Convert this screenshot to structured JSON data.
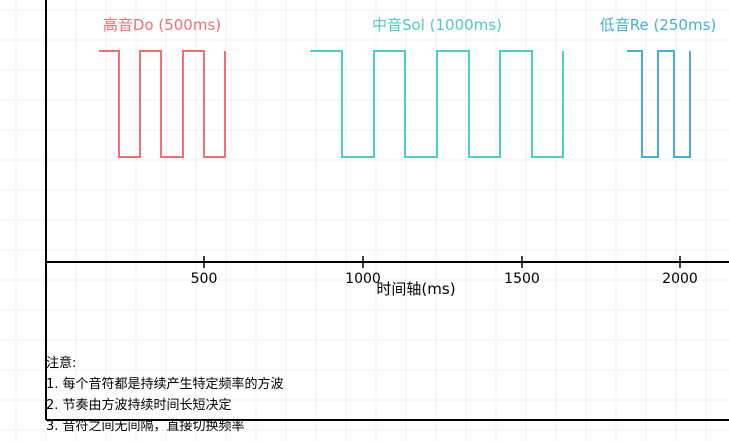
{
  "diagram": {
    "axis_label": "时间轴(ms)",
    "ticks": [
      "500",
      "1000",
      "1500",
      "2000"
    ],
    "waves": [
      {
        "label": "高音Do (500ms)",
        "color": "#f07070"
      },
      {
        "label": "中音Sol (1000ms)",
        "color": "#4ecdc4"
      },
      {
        "label": "低音Re (250ms)",
        "color": "#45b0d5"
      }
    ]
  },
  "notes": {
    "title": "注意:",
    "lines": [
      "1. 每个音符都是持续产生特定频率的方波",
      "2. 节奏由方波持续时间长短决定",
      "3. 音符之间无间隔，直接切换频率"
    ]
  }
}
